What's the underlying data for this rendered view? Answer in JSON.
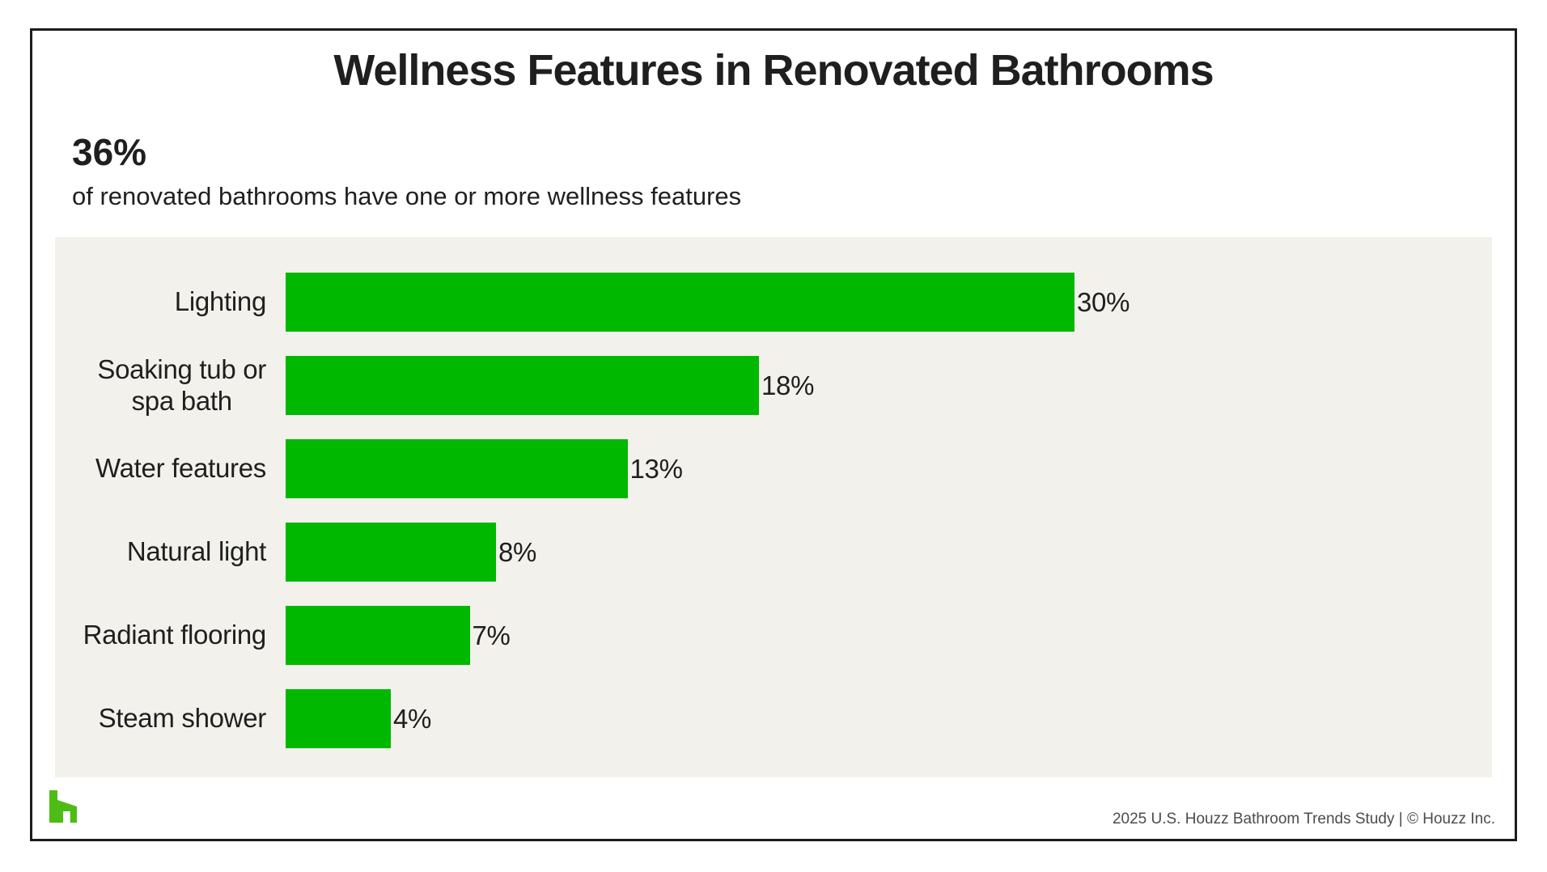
{
  "header": {
    "title": "Wellness Features in Renovated Bathrooms"
  },
  "stat": {
    "value": "36%",
    "description": "of renovated bathrooms have one or more wellness features"
  },
  "chart_data": {
    "type": "bar",
    "orientation": "horizontal",
    "title": "Wellness Features in Renovated Bathrooms",
    "categories": [
      "Lighting",
      "Soaking tub or\nspa bath",
      "Water features",
      "Natural light",
      "Radiant flooring",
      "Steam shower"
    ],
    "values": [
      30,
      18,
      13,
      8,
      7,
      4
    ],
    "value_labels": [
      "30%",
      "18%",
      "13%",
      "8%",
      "7%",
      "4%"
    ],
    "value_suffix": "%",
    "xlim": [
      0,
      30
    ],
    "grid": false,
    "legend": false,
    "value_label_position": "end-of-bar",
    "category_label_position": "left"
  },
  "colors": {
    "bar_green": "#00b800",
    "logo_green": "#4dbc15",
    "panel_background": "#f2f1ec",
    "text": "#1f1f1f",
    "footer_text": "#4c4c4c",
    "frame_border": "#1c1c1c"
  },
  "footer": {
    "logo": "houzz-logo",
    "source": "2025 U.S. Houzz Bathroom Trends Study  |  © Houzz Inc."
  }
}
